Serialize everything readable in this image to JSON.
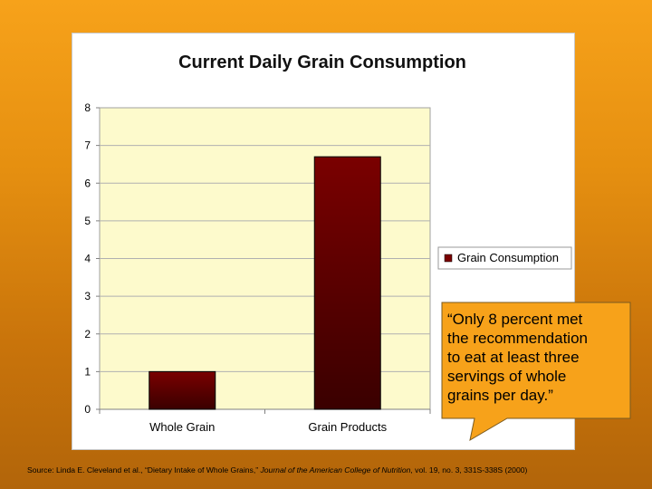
{
  "chart_data": {
    "type": "bar",
    "title": "Current Daily Grain Consumption",
    "categories": [
      "Whole Grain",
      "Grain Products"
    ],
    "series": [
      {
        "name": "Grain Consumption",
        "values": [
          1.0,
          6.7
        ],
        "color": "#7a0000"
      }
    ],
    "ylim": [
      0,
      8
    ],
    "yticks": [
      "0",
      "1",
      "2",
      "3",
      "4",
      "5",
      "6",
      "7",
      "8"
    ],
    "xlabel": "",
    "ylabel": "",
    "grid": true,
    "legend_position": "right",
    "plot_background": "#fdfacc"
  },
  "callout": {
    "lines": [
      "“Only 8 percent met",
      "the recommendation",
      "to eat at least three",
      "servings of whole",
      "grains per day.”"
    ],
    "background": "#f7a21a"
  },
  "source": {
    "prefix": "Source: Linda E. Cleveland et al., “Dietary Intake of Whole Grains,” ",
    "journal": "Journal of the American College of Nutrition",
    "suffix": ", vol. 19, no. 3, 331S-338S (2000)"
  }
}
